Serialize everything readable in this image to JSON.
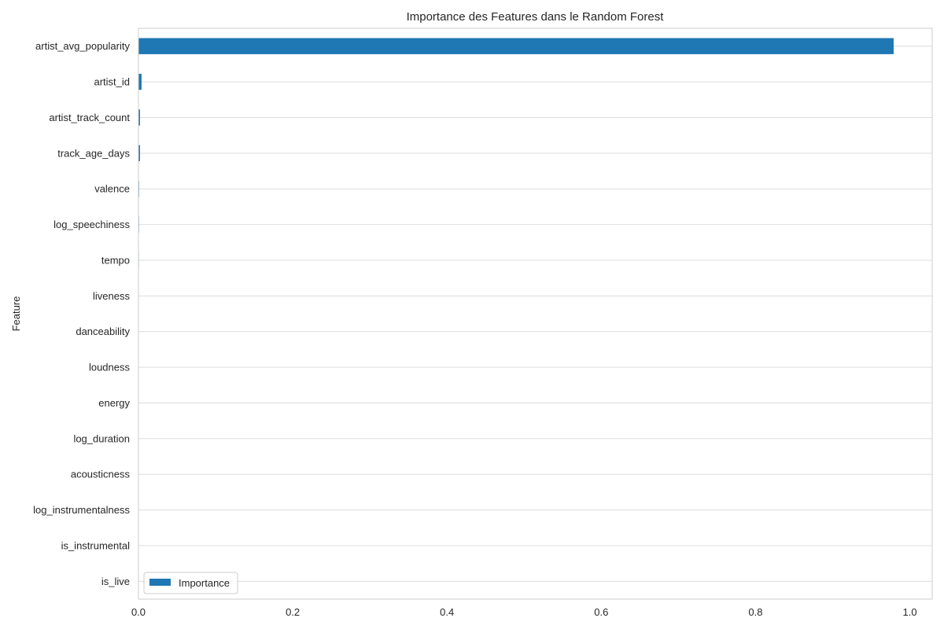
{
  "chart_data": {
    "type": "bar",
    "orientation": "horizontal",
    "title": "Importance des Features dans le Random Forest",
    "xlabel": "",
    "ylabel": "Feature",
    "xlim": [
      0,
      1.0
    ],
    "x_ticks": [
      0.0,
      0.2,
      0.4,
      0.6,
      0.8,
      1.0
    ],
    "x_tick_labels": [
      "0.0",
      "0.2",
      "0.4",
      "0.6",
      "0.8",
      "1.0"
    ],
    "grid": true,
    "legend_position": "lower-left",
    "categories": [
      "artist_avg_popularity",
      "artist_id",
      "artist_track_count",
      "track_age_days",
      "valence",
      "log_speechiness",
      "tempo",
      "liveness",
      "danceability",
      "loudness",
      "energy",
      "log_duration",
      "acousticness",
      "log_instrumentalness",
      "is_instrumental",
      "is_live"
    ],
    "series": [
      {
        "name": "Importance",
        "color": "#1f77b4",
        "values": [
          0.979,
          0.004,
          0.002,
          0.002,
          0.0008,
          0.0007,
          0.0006,
          0.0005,
          0.0005,
          0.0004,
          0.0004,
          0.0003,
          0.0003,
          0.0002,
          0.0001,
          0.0001
        ]
      }
    ]
  }
}
